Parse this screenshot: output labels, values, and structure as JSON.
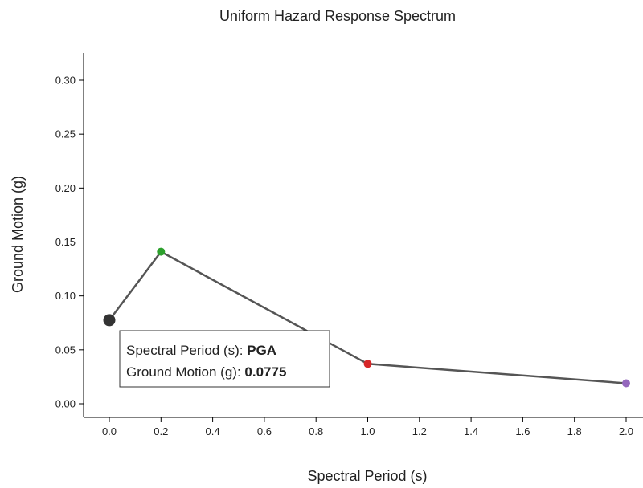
{
  "chart_data": {
    "type": "line",
    "title": "Uniform Hazard Response Spectrum",
    "xlabel": "Spectral Period (s)",
    "ylabel": "Ground Motion (g)",
    "xlim": [
      -0.1,
      2.05
    ],
    "ylim": [
      0,
      0.32
    ],
    "x_ticks": [
      "0.0",
      "0.2",
      "0.4",
      "0.6",
      "0.8",
      "1.0",
      "1.2",
      "1.4",
      "1.6",
      "1.8",
      "2.0"
    ],
    "y_ticks": [
      "0.00",
      "0.05",
      "0.10",
      "0.15",
      "0.20",
      "0.25",
      "0.30"
    ],
    "series": [
      {
        "x": [
          0.0,
          0.2,
          1.0,
          2.0
        ],
        "y": [
          0.0775,
          0.141,
          0.037,
          0.019
        ],
        "point_colors": [
          "#333333",
          "#2ca02c",
          "#d62728",
          "#9467bd"
        ]
      }
    ],
    "tooltip": {
      "line1_label": "Spectral Period (s): ",
      "line1_value": "PGA",
      "line2_label": "Ground Motion (g): ",
      "line2_value": "0.0775"
    },
    "grid": false
  }
}
